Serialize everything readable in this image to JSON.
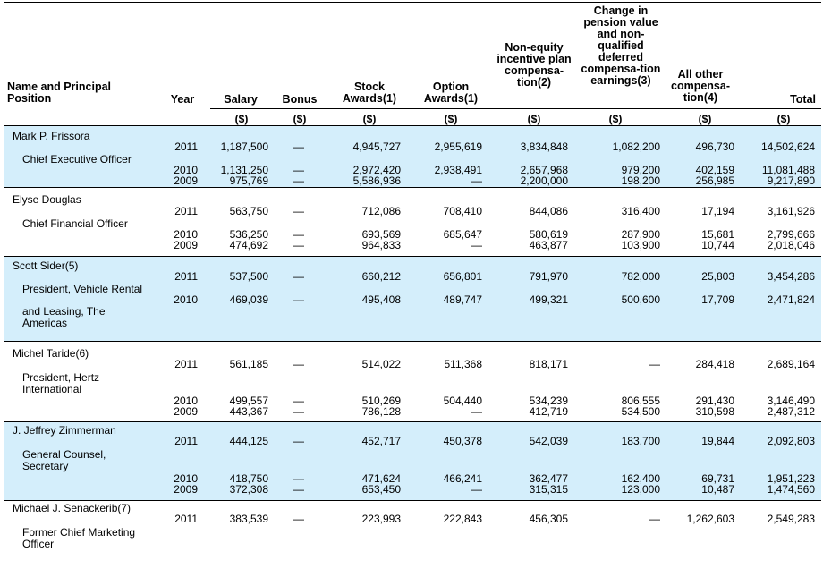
{
  "headers": {
    "name": "Name and Principal Position",
    "year": "Year",
    "salary": "Salary",
    "bonus": "Bonus",
    "stock": "Stock Awards(1)",
    "option": "Option Awards(1)",
    "nonequity": "Non-equity incentive plan compensa-tion(2)",
    "pension": "Change in pension value and non-qualified deferred compensa-tion earnings(3)",
    "other": "All other compensa-tion(4)",
    "total": "Total"
  },
  "unit": "($)",
  "dash": "—",
  "executives": [
    {
      "name": "Mark P. Frissora",
      "title": "Chief Executive Officer",
      "rows": [
        {
          "year": "2011",
          "salary": "1,187,500",
          "bonus": "—",
          "stock": "4,945,727",
          "option": "2,955,619",
          "nonequity": "3,834,848",
          "pension": "1,082,200",
          "other": "496,730",
          "total": "14,502,624"
        },
        {
          "year": "2010",
          "salary": "1,131,250",
          "bonus": "—",
          "stock": "2,972,420",
          "option": "2,938,491",
          "nonequity": "2,657,968",
          "pension": "979,200",
          "other": "402,159",
          "total": "11,081,488"
        },
        {
          "year": "2009",
          "salary": "975,769",
          "bonus": "—",
          "stock": "5,586,936",
          "option": "—",
          "nonequity": "2,200,000",
          "pension": "198,200",
          "other": "256,985",
          "total": "9,217,890"
        }
      ]
    },
    {
      "name": "Elyse Douglas",
      "title": "Chief Financial Officer",
      "rows": [
        {
          "year": "2011",
          "salary": "563,750",
          "bonus": "—",
          "stock": "712,086",
          "option": "708,410",
          "nonequity": "844,086",
          "pension": "316,400",
          "other": "17,194",
          "total": "3,161,926"
        },
        {
          "year": "2010",
          "salary": "536,250",
          "bonus": "—",
          "stock": "693,569",
          "option": "685,647",
          "nonequity": "580,619",
          "pension": "287,900",
          "other": "15,681",
          "total": "2,799,666"
        },
        {
          "year": "2009",
          "salary": "474,692",
          "bonus": "—",
          "stock": "964,833",
          "option": "—",
          "nonequity": "463,877",
          "pension": "103,900",
          "other": "10,744",
          "total": "2,018,046"
        }
      ]
    },
    {
      "name": "Scott Sider(5)",
      "title": "President, Vehicle Rental",
      "title2": "and Leasing, The Americas",
      "rows": [
        {
          "year": "2011",
          "salary": "537,500",
          "bonus": "—",
          "stock": "660,212",
          "option": "656,801",
          "nonequity": "791,970",
          "pension": "782,000",
          "other": "25,803",
          "total": "3,454,286"
        },
        {
          "year": "2010",
          "salary": "469,039",
          "bonus": "—",
          "stock": "495,408",
          "option": "489,747",
          "nonequity": "499,321",
          "pension": "500,600",
          "other": "17,709",
          "total": "2,471,824"
        }
      ]
    },
    {
      "name": "Michel Taride(6)",
      "title": "President, Hertz International",
      "rows": [
        {
          "year": "2011",
          "salary": "561,185",
          "bonus": "—",
          "stock": "514,022",
          "option": "511,368",
          "nonequity": "818,171",
          "pension": "—",
          "other": "284,418",
          "total": "2,689,164"
        },
        {
          "year": "2010",
          "salary": "499,557",
          "bonus": "—",
          "stock": "510,269",
          "option": "504,440",
          "nonequity": "534,239",
          "pension": "806,555",
          "other": "291,430",
          "total": "3,146,490"
        },
        {
          "year": "2009",
          "salary": "443,367",
          "bonus": "—",
          "stock": "786,128",
          "option": "—",
          "nonequity": "412,719",
          "pension": "534,500",
          "other": "310,598",
          "total": "2,487,312"
        }
      ]
    },
    {
      "name": "J. Jeffrey Zimmerman",
      "title": "General Counsel, Secretary",
      "rows": [
        {
          "year": "2011",
          "salary": "444,125",
          "bonus": "—",
          "stock": "452,717",
          "option": "450,378",
          "nonequity": "542,039",
          "pension": "183,700",
          "other": "19,844",
          "total": "2,092,803"
        },
        {
          "year": "2010",
          "salary": "418,750",
          "bonus": "—",
          "stock": "471,624",
          "option": "466,241",
          "nonequity": "362,477",
          "pension": "162,400",
          "other": "69,731",
          "total": "1,951,223"
        },
        {
          "year": "2009",
          "salary": "372,308",
          "bonus": "—",
          "stock": "653,450",
          "option": "—",
          "nonequity": "315,315",
          "pension": "123,000",
          "other": "10,487",
          "total": "1,474,560"
        }
      ]
    },
    {
      "name": "Michael J. Senackerib(7)",
      "title": "Former Chief Marketing Officer",
      "rows": [
        {
          "year": "2011",
          "salary": "383,539",
          "bonus": "—",
          "stock": "223,993",
          "option": "222,843",
          "nonequity": "456,305",
          "pension": "—",
          "other": "1,262,603",
          "total": "2,549,283"
        }
      ]
    }
  ]
}
